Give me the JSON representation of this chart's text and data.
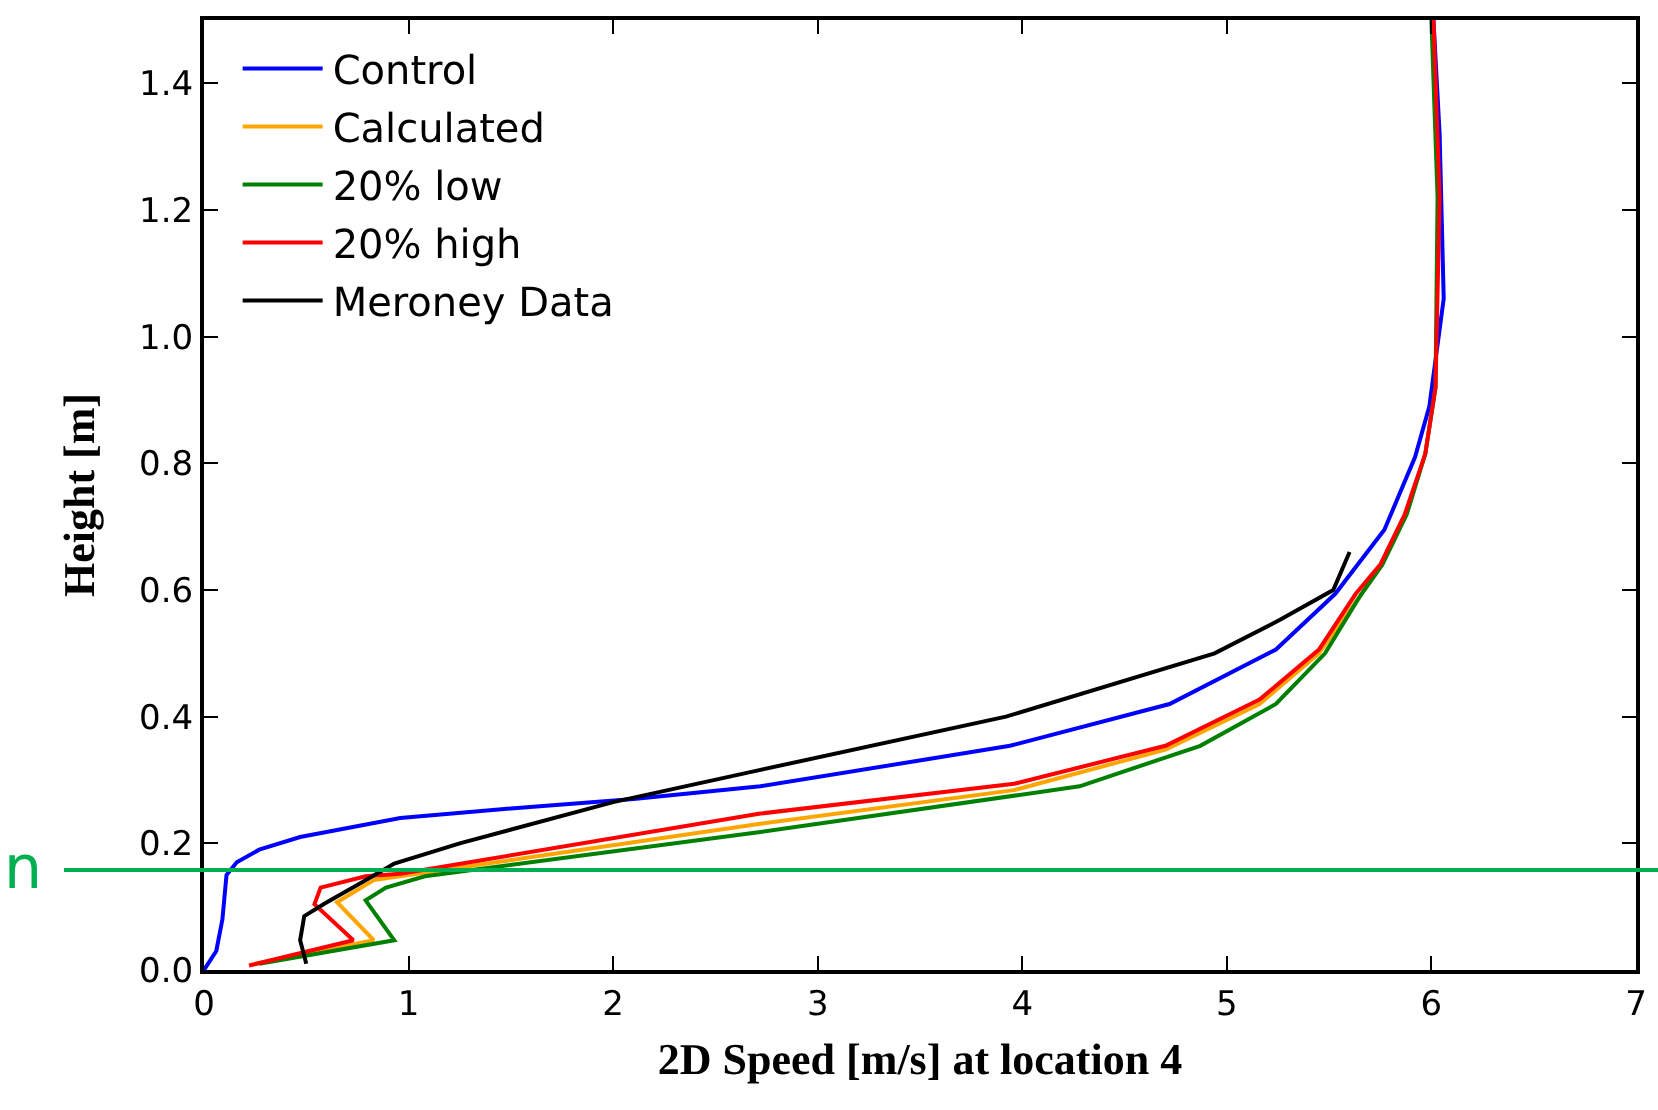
{
  "chart_data": {
    "type": "line",
    "xlabel": "2D Speed [m/s] at location 4",
    "ylabel": "Height [m]",
    "xlim": [
      0,
      7
    ],
    "ylim": [
      0,
      1.5
    ],
    "xticks": [
      0,
      1,
      2,
      3,
      4,
      5,
      6,
      7
    ],
    "yticks": [
      {
        "value": 0,
        "label": "0.0"
      },
      {
        "value": 0.2,
        "label": "0.2"
      },
      {
        "value": 0.4,
        "label": "0.4"
      },
      {
        "value": 0.6,
        "label": "0.6"
      },
      {
        "value": 0.8,
        "label": "0.8"
      },
      {
        "value": 1,
        "label": "1.0"
      },
      {
        "value": 1.2,
        "label": "1.2"
      },
      {
        "value": 1.4,
        "label": "1.4"
      }
    ],
    "grid": false,
    "legend": "top left",
    "marker": "none",
    "line_style": "solid",
    "ref_lines": [
      {
        "axis": "y",
        "value": 0.158,
        "label": "n",
        "color": "#00b050"
      }
    ],
    "series": [
      {
        "name": "Control",
        "color": "#0000ff",
        "x": [
          0,
          0.06,
          0.09,
          0.11,
          0.16,
          0.27,
          0.47,
          0.96,
          1.5,
          2.1,
          2.72,
          3.94,
          4.72,
          5.24,
          5.53,
          5.77,
          5.92,
          5.99,
          6.06,
          6.04,
          6.01
        ],
        "values": [
          0,
          0.03,
          0.08,
          0.15,
          0.17,
          0.19,
          0.21,
          0.24,
          0.255,
          0.27,
          0.29,
          0.354,
          0.42,
          0.506,
          0.594,
          0.695,
          0.81,
          0.89,
          1.06,
          1.32,
          1.5
        ]
      },
      {
        "name": "Calculated",
        "color": "#ffa500",
        "x": [
          0.25,
          0.83,
          0.65,
          0.83,
          1.0,
          2.72,
          3.96,
          4.7,
          5.16,
          5.45,
          5.65,
          5.76
        ],
        "values": [
          0.01,
          0.047,
          0.107,
          0.142,
          0.15,
          0.231,
          0.284,
          0.348,
          0.42,
          0.5,
          0.59,
          0.64
        ]
      },
      {
        "name": "20% low",
        "color": "#008000",
        "x": [
          0.27,
          0.93,
          0.79,
          0.89,
          1.08,
          2.72,
          4.28,
          4.87,
          5.24,
          5.48,
          5.65,
          5.76,
          5.88,
          5.97,
          6.02,
          6.03,
          6.0
        ],
        "values": [
          0.01,
          0.047,
          0.11,
          0.13,
          0.148,
          0.218,
          0.29,
          0.354,
          0.42,
          0.5,
          0.59,
          0.64,
          0.72,
          0.815,
          0.92,
          1.22,
          1.5
        ]
      },
      {
        "name": "20% high",
        "color": "#ff0000",
        "x": [
          0.22,
          0.73,
          0.54,
          0.57,
          0.79,
          0.96,
          2.72,
          3.96,
          4.7,
          5.16,
          5.45,
          5.63,
          5.75,
          5.87,
          5.97,
          6.02,
          6.04,
          6.01
        ],
        "values": [
          0.007,
          0.047,
          0.104,
          0.13,
          0.148,
          0.152,
          0.247,
          0.294,
          0.354,
          0.427,
          0.506,
          0.594,
          0.64,
          0.72,
          0.815,
          0.92,
          1.22,
          1.5
        ]
      },
      {
        "name": "Meroney Data",
        "color": "#000000",
        "x": [
          0.5,
          0.47,
          0.49,
          0.59,
          0.76,
          0.93,
          1.25,
          2.0,
          2.72,
          3.92,
          4.94,
          5.26,
          5.52,
          5.6
        ],
        "values": [
          0.01,
          0.047,
          0.085,
          0.105,
          0.136,
          0.168,
          0.2,
          0.265,
          0.316,
          0.4,
          0.5,
          0.553,
          0.6,
          0.66
        ]
      }
    ]
  }
}
